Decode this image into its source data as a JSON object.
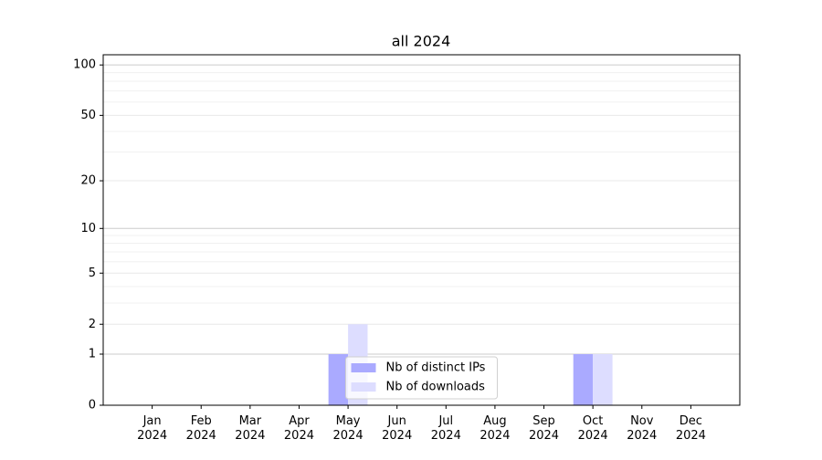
{
  "chart_data": {
    "type": "bar",
    "title": "all 2024",
    "categories": [
      "Jan\n2024",
      "Feb\n2024",
      "Mar\n2024",
      "Apr\n2024",
      "May\n2024",
      "Jun\n2024",
      "Jul\n2024",
      "Aug\n2024",
      "Sep\n2024",
      "Oct\n2024",
      "Nov\n2024",
      "Dec\n2024"
    ],
    "series": [
      {
        "name": "Nb of distinct IPs",
        "color": "#aaaaff",
        "values": [
          0,
          0,
          0,
          0,
          1,
          0,
          0,
          0,
          0,
          1,
          0,
          0
        ]
      },
      {
        "name": "Nb of downloads",
        "color": "#ddddff",
        "values": [
          0,
          0,
          0,
          0,
          2,
          0,
          0,
          0,
          0,
          1,
          0,
          0
        ]
      }
    ],
    "yscale": "log1p",
    "ylim": [
      0,
      115
    ],
    "yticks": [
      0,
      1,
      2,
      5,
      10,
      20,
      50,
      100
    ],
    "minor_yticks": [
      3,
      4,
      6,
      7,
      8,
      9,
      30,
      40,
      60,
      70,
      80,
      90
    ],
    "grid": true,
    "legend": "lower center"
  }
}
